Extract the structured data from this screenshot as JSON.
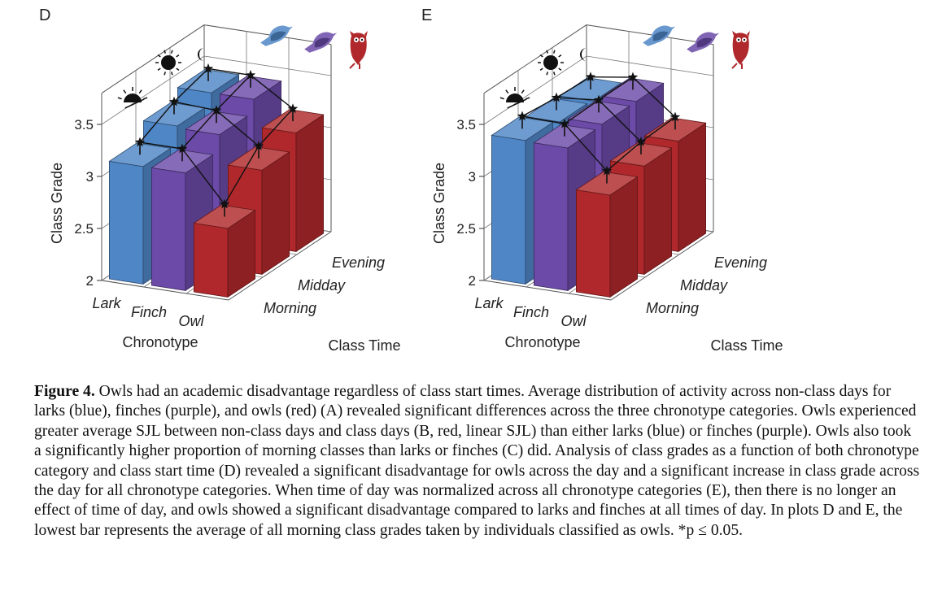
{
  "colors": {
    "lark": "#4f86c6",
    "finch": "#6b4aa8",
    "owl": "#b0282b"
  },
  "icons": [
    "sunrise-icon",
    "sun-icon",
    "moon-icon",
    "lark-bird-icon",
    "finch-bird-icon",
    "owl-bird-icon"
  ],
  "chart_data": [
    {
      "panel": "D",
      "type": "bar3d",
      "zlabel": "Class Grade",
      "zlim": [
        2,
        3.8
      ],
      "zticks": [
        "2",
        "2.5",
        "3",
        "3.5"
      ],
      "xlabel": "Chronotype",
      "ylabel": "Class Time",
      "chronotypes": [
        "Lark",
        "Finch",
        "Owl"
      ],
      "class_times": [
        "Morning",
        "Midday",
        "Evening"
      ],
      "values": {
        "Lark": [
          3.13,
          3.3,
          3.4
        ],
        "Finch": [
          3.13,
          3.28,
          3.4
        ],
        "Owl": [
          2.66,
          3.0,
          3.14
        ]
      },
      "significance_marker": "*"
    },
    {
      "panel": "E",
      "type": "bar3d",
      "zlabel": "Class Grade",
      "zlim": [
        2,
        3.8
      ],
      "zticks": [
        "2",
        "2.5",
        "3",
        "3.5"
      ],
      "xlabel": "Chronotype",
      "ylabel": "Class Time",
      "chronotypes": [
        "Lark",
        "Finch",
        "Owl"
      ],
      "class_times": [
        "Morning",
        "Midday",
        "Evening"
      ],
      "values": {
        "Lark": [
          3.38,
          3.34,
          3.32
        ],
        "Finch": [
          3.37,
          3.38,
          3.38
        ],
        "Owl": [
          2.98,
          3.04,
          3.06
        ]
      },
      "significance_marker": "*"
    }
  ],
  "caption": {
    "label": "Figure 4.",
    "text": " Owls had an academic disadvantage regardless of class start times. Average distribution of activity across non-class days for larks (blue), finches (purple), and owls (red) (A) revealed significant differences across the three chronotype categories. Owls experienced greater average SJL between non-class days and class days (B, red, linear SJL) than either larks (blue) or finches (purple). Owls also took a significantly higher proportion of morning classes than larks or finches (C) did. Analysis of class grades as a function of both chronotype category and class start time (D) revealed a significant disadvantage for owls across the day and a significant increase in class grade across the day for all chronotype categories. When time of day was normalized across all chronotype categories (E), then there is no longer an effect of time of day, and owls showed a significant disadvantage compared to larks and finches at all times of day. In plots D and E, the lowest bar represents the average of all morning class grades taken by individuals classified as owls. *p ≤ 0.05."
  }
}
